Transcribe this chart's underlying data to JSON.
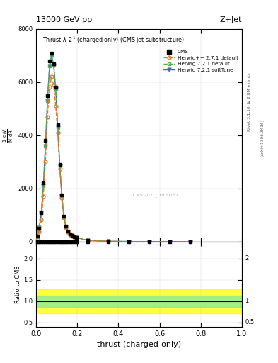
{
  "title_top": "13000 GeV pp",
  "title_right": "Z+Jet",
  "xlabel": "thrust (charged-only)",
  "ylabel_ratio": "Ratio to CMS",
  "right_label_top": "Rivet 3.1.10, ≥ 2.8M events",
  "right_label_bottom": "[arXiv:1306.3436]",
  "watermark": "CMS 2021_I1920187",
  "cms_x": [
    0.005,
    0.015,
    0.025,
    0.035,
    0.045,
    0.055,
    0.065,
    0.075,
    0.085,
    0.095,
    0.105,
    0.115,
    0.125,
    0.135,
    0.145,
    0.155,
    0.165,
    0.175,
    0.185,
    0.195,
    0.25,
    0.35,
    0.45,
    0.55,
    0.65,
    0.75
  ],
  "cms_y": [
    200,
    500,
    1100,
    2200,
    3800,
    5500,
    6800,
    7100,
    6700,
    5800,
    4400,
    2900,
    1750,
    950,
    580,
    390,
    280,
    230,
    185,
    160,
    50,
    15,
    6,
    2.5,
    1.5,
    0.5
  ],
  "hpp_x": [
    0.005,
    0.015,
    0.025,
    0.035,
    0.045,
    0.055,
    0.065,
    0.075,
    0.085,
    0.095,
    0.105,
    0.115,
    0.125,
    0.135,
    0.145,
    0.155,
    0.165,
    0.175,
    0.185,
    0.195,
    0.25,
    0.35,
    0.45,
    0.55,
    0.65,
    0.75
  ],
  "hpp_y": [
    120,
    380,
    820,
    1700,
    3000,
    4700,
    5800,
    6200,
    5900,
    5100,
    4100,
    2750,
    1650,
    890,
    530,
    360,
    265,
    215,
    175,
    148,
    42,
    12,
    5,
    2,
    1.2,
    0.4
  ],
  "h721d_x": [
    0.005,
    0.015,
    0.025,
    0.035,
    0.045,
    0.055,
    0.065,
    0.075,
    0.085,
    0.095,
    0.105,
    0.115,
    0.125,
    0.135,
    0.145,
    0.155,
    0.165,
    0.175,
    0.185,
    0.195,
    0.25,
    0.35,
    0.45,
    0.55,
    0.65,
    0.75
  ],
  "h721d_y": [
    180,
    520,
    1100,
    2100,
    3600,
    5300,
    6600,
    7000,
    6650,
    5750,
    4300,
    2850,
    1720,
    940,
    565,
    380,
    275,
    228,
    183,
    158,
    48,
    14,
    5.5,
    2.2,
    1.4,
    0.5
  ],
  "h721s_x": [
    0.005,
    0.015,
    0.025,
    0.035,
    0.045,
    0.055,
    0.065,
    0.075,
    0.085,
    0.095,
    0.105,
    0.115,
    0.125,
    0.135,
    0.145,
    0.155,
    0.165,
    0.175,
    0.185,
    0.195,
    0.25,
    0.35,
    0.45,
    0.55,
    0.65,
    0.75
  ],
  "h721s_y": [
    180,
    520,
    1100,
    2100,
    3600,
    5300,
    6600,
    7000,
    6650,
    5750,
    4300,
    2850,
    1720,
    940,
    565,
    380,
    275,
    228,
    183,
    158,
    48,
    14,
    5.5,
    2.2,
    1.4,
    0.5
  ],
  "ylim_main": [
    0,
    8000
  ],
  "ylim_ratio": [
    0.4,
    2.4
  ],
  "yticks_main": [
    0,
    2000,
    4000,
    6000,
    8000
  ],
  "yticks_ratio": [
    0.5,
    1.0,
    1.5,
    2.0
  ],
  "color_cms": "#000000",
  "color_hpp": "#e07828",
  "color_h721d": "#50b050",
  "color_h721s": "#3070b8",
  "ratio_yellow_lo": 0.72,
  "ratio_yellow_hi": 1.28,
  "ratio_green_lo": 0.87,
  "ratio_green_hi": 1.13,
  "figsize": [
    3.93,
    5.12
  ],
  "dpi": 100
}
